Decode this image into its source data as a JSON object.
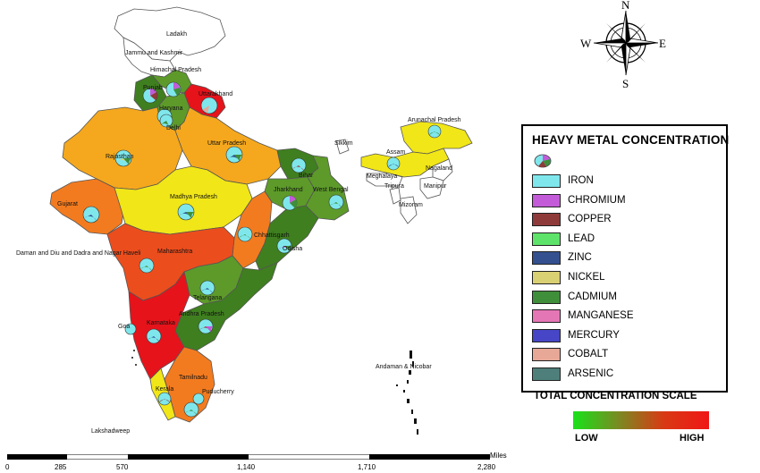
{
  "map": {
    "state_labels": [
      "Ladakh",
      "Jammu and Kashmir",
      "Himachal Pradesh",
      "Punjab",
      "Uttarakhand",
      "Haryana",
      "Delhi",
      "Rajasthan",
      "Uttar Pradesh",
      "Arunachal Pradesh",
      "Sikkim",
      "Assam",
      "Nagaland",
      "Meghalaya",
      "Manipur",
      "Tripura",
      "Mizoram",
      "Bihar",
      "Jharkhand",
      "West Bengal",
      "Gujarat",
      "Madhya Pradesh",
      "Chhattisgarh",
      "Daman and Diu and Dadra and Nagar Haveli",
      "Maharashtra",
      "Odisha",
      "Telangana",
      "Andhra Pradesh",
      "Karnataka",
      "Goa",
      "Tamilnadu",
      "Puducherry",
      "Kerala",
      "Andaman & Nicobar",
      "Lakshadweep"
    ],
    "colors": {
      "low": "#22c51a",
      "green": "#5d9a2a",
      "dark_green": "#3f7f1f",
      "yellow": "#f1e617",
      "amber": "#f5a81d",
      "orange": "#f37b1f",
      "red_orange": "#ec4d1d",
      "red": "#e6131b"
    }
  },
  "compass": {
    "n": "N",
    "s": "S",
    "e": "E",
    "w": "W"
  },
  "legend": {
    "title": "HEAVY METAL CONCENTRATION",
    "items": [
      {
        "name": "IRON",
        "color": "#7fe7ec"
      },
      {
        "name": "CHROMIUM",
        "color": "#c35bd8"
      },
      {
        "name": "COPPER",
        "color": "#8f3a3a"
      },
      {
        "name": "LEAD",
        "color": "#5ee36a"
      },
      {
        "name": "ZINC",
        "color": "#34508e"
      },
      {
        "name": "NICKEL",
        "color": "#d9cf73"
      },
      {
        "name": "CADMIUM",
        "color": "#3f8e3a"
      },
      {
        "name": "MANGANESE",
        "color": "#e576b5"
      },
      {
        "name": "MERCURY",
        "color": "#4646c6"
      },
      {
        "name": "COBALT",
        "color": "#e7a898"
      },
      {
        "name": "ARSENIC",
        "color": "#4f7f7a"
      }
    ],
    "scale_title": "TOTAL CONCENTRATION SCALE",
    "scale_low": "LOW",
    "scale_high": "HIGH"
  },
  "scale_bar": {
    "ticks": [
      "0",
      "285",
      "570",
      "1,140",
      "1,710",
      "2,280"
    ],
    "unit": "Miles"
  }
}
